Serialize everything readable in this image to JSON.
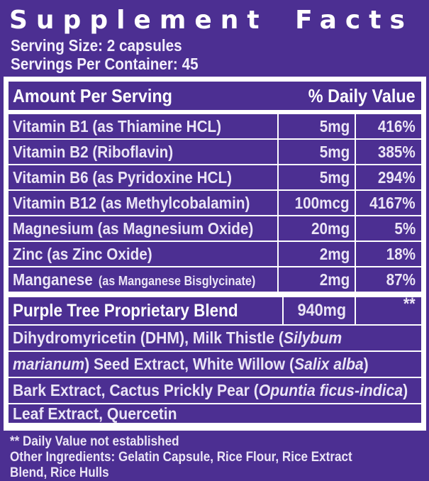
{
  "label": {
    "title": "Supplement Facts",
    "serving_size": "Serving Size: 2 capsules",
    "servings_per_container": "Servings Per Container: 45",
    "colors": {
      "background_purple": "#4C2F92",
      "text_white": "#FFFFFF",
      "row_text_lavender": "#EBE5F6"
    },
    "table": {
      "header": {
        "amount_label": "Amount Per Serving",
        "dv_label": "% Daily Value"
      },
      "rows": [
        {
          "name": "Vitamin B1 (as Thiamine HCL)",
          "amount": "5mg",
          "dv": "416%"
        },
        {
          "name": "Vitamin B2 (Riboflavin)",
          "amount": "5mg",
          "dv": "385%"
        },
        {
          "name": "Vitamin B6 (as Pyridoxine HCL)",
          "amount": "5mg",
          "dv": "294%"
        },
        {
          "name": "Vitamin B12 (as Methylcobalamin)",
          "amount": "100mcg",
          "dv": "4167%"
        },
        {
          "name": "Magnesium (as Magnesium Oxide)",
          "amount": "20mg",
          "dv": "5%"
        },
        {
          "name": "Zinc (as Zinc Oxide)",
          "amount": "2mg",
          "dv": "18%"
        },
        {
          "name": "Manganese",
          "name_sub": "(as Manganese Bisglycinate)",
          "amount": "2mg",
          "dv": "87%"
        }
      ],
      "blend": {
        "name": "Purple Tree Proprietary Blend",
        "amount": "940mg",
        "dv": "**",
        "description_lines": [
          [
            {
              "t": "Dihydromyricetin (DHM), Milk Thistle ("
            },
            {
              "t": "Silybum",
              "i": true
            }
          ],
          [
            {
              "t": "marianum",
              "i": true
            },
            {
              "t": ") Seed Extract, White Willow ("
            },
            {
              "t": "Salix alba",
              "i": true
            },
            {
              "t": ")"
            }
          ],
          [
            {
              "t": "Bark Extract, Cactus Prickly Pear ("
            },
            {
              "t": "Opuntia ficus-indica",
              "i": true
            },
            {
              "t": ")"
            }
          ],
          [
            {
              "t": "Leaf Extract, Quercetin"
            }
          ]
        ]
      }
    },
    "footer": {
      "footnote": "** Daily Value not established",
      "other_ingredients": "Other Ingredients: Gelatin Capsule, Rice Flour, Rice Extract",
      "other_ingredients_continued": "Blend, Rice Hulls"
    }
  }
}
